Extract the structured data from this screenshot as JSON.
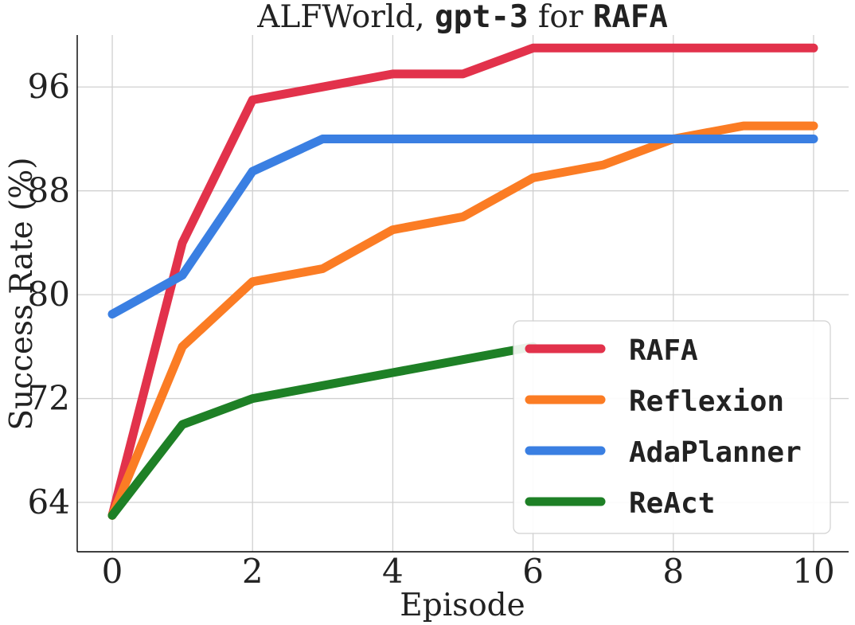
{
  "chart_data": {
    "type": "line",
    "title": {
      "part1": "ALFWorld, ",
      "part2": "gpt-3",
      "part3": " for ",
      "part4": "RAFA"
    },
    "xlabel": "Episode",
    "ylabel": "Success Rate (%)",
    "xlim": [
      -0.5,
      10.5
    ],
    "ylim": [
      60.2,
      100
    ],
    "xticks": [
      0,
      2,
      4,
      6,
      8,
      10
    ],
    "yticks": [
      64,
      72,
      80,
      88,
      96
    ],
    "grid": true,
    "legend_position": "lower-right",
    "series": [
      {
        "name": "RAFA",
        "color": "#e2324b",
        "x": [
          0,
          1,
          2,
          3,
          4,
          5,
          6,
          7,
          8,
          9,
          10
        ],
        "y": [
          63,
          84,
          95,
          96,
          97,
          97,
          99,
          99,
          99,
          99,
          99
        ]
      },
      {
        "name": "Reflexion",
        "color": "#fb7c24",
        "x": [
          0,
          1,
          2,
          3,
          4,
          5,
          6,
          7,
          8,
          9,
          10
        ],
        "y": [
          63,
          76,
          81,
          82,
          85,
          86,
          89,
          90,
          92,
          93,
          93
        ]
      },
      {
        "name": "AdaPlanner",
        "color": "#3a7fe2",
        "x": [
          0,
          1,
          2,
          3,
          4,
          5,
          6,
          7,
          8,
          9,
          10
        ],
        "y": [
          78.5,
          81.5,
          89.5,
          92,
          92,
          92,
          92,
          92,
          92,
          92,
          92
        ]
      },
      {
        "name": "ReAct",
        "color": "#1e8026",
        "x": [
          0,
          1,
          2,
          3,
          4,
          5,
          6
        ],
        "y": [
          63,
          70,
          72,
          73,
          74,
          75,
          76
        ]
      }
    ]
  }
}
